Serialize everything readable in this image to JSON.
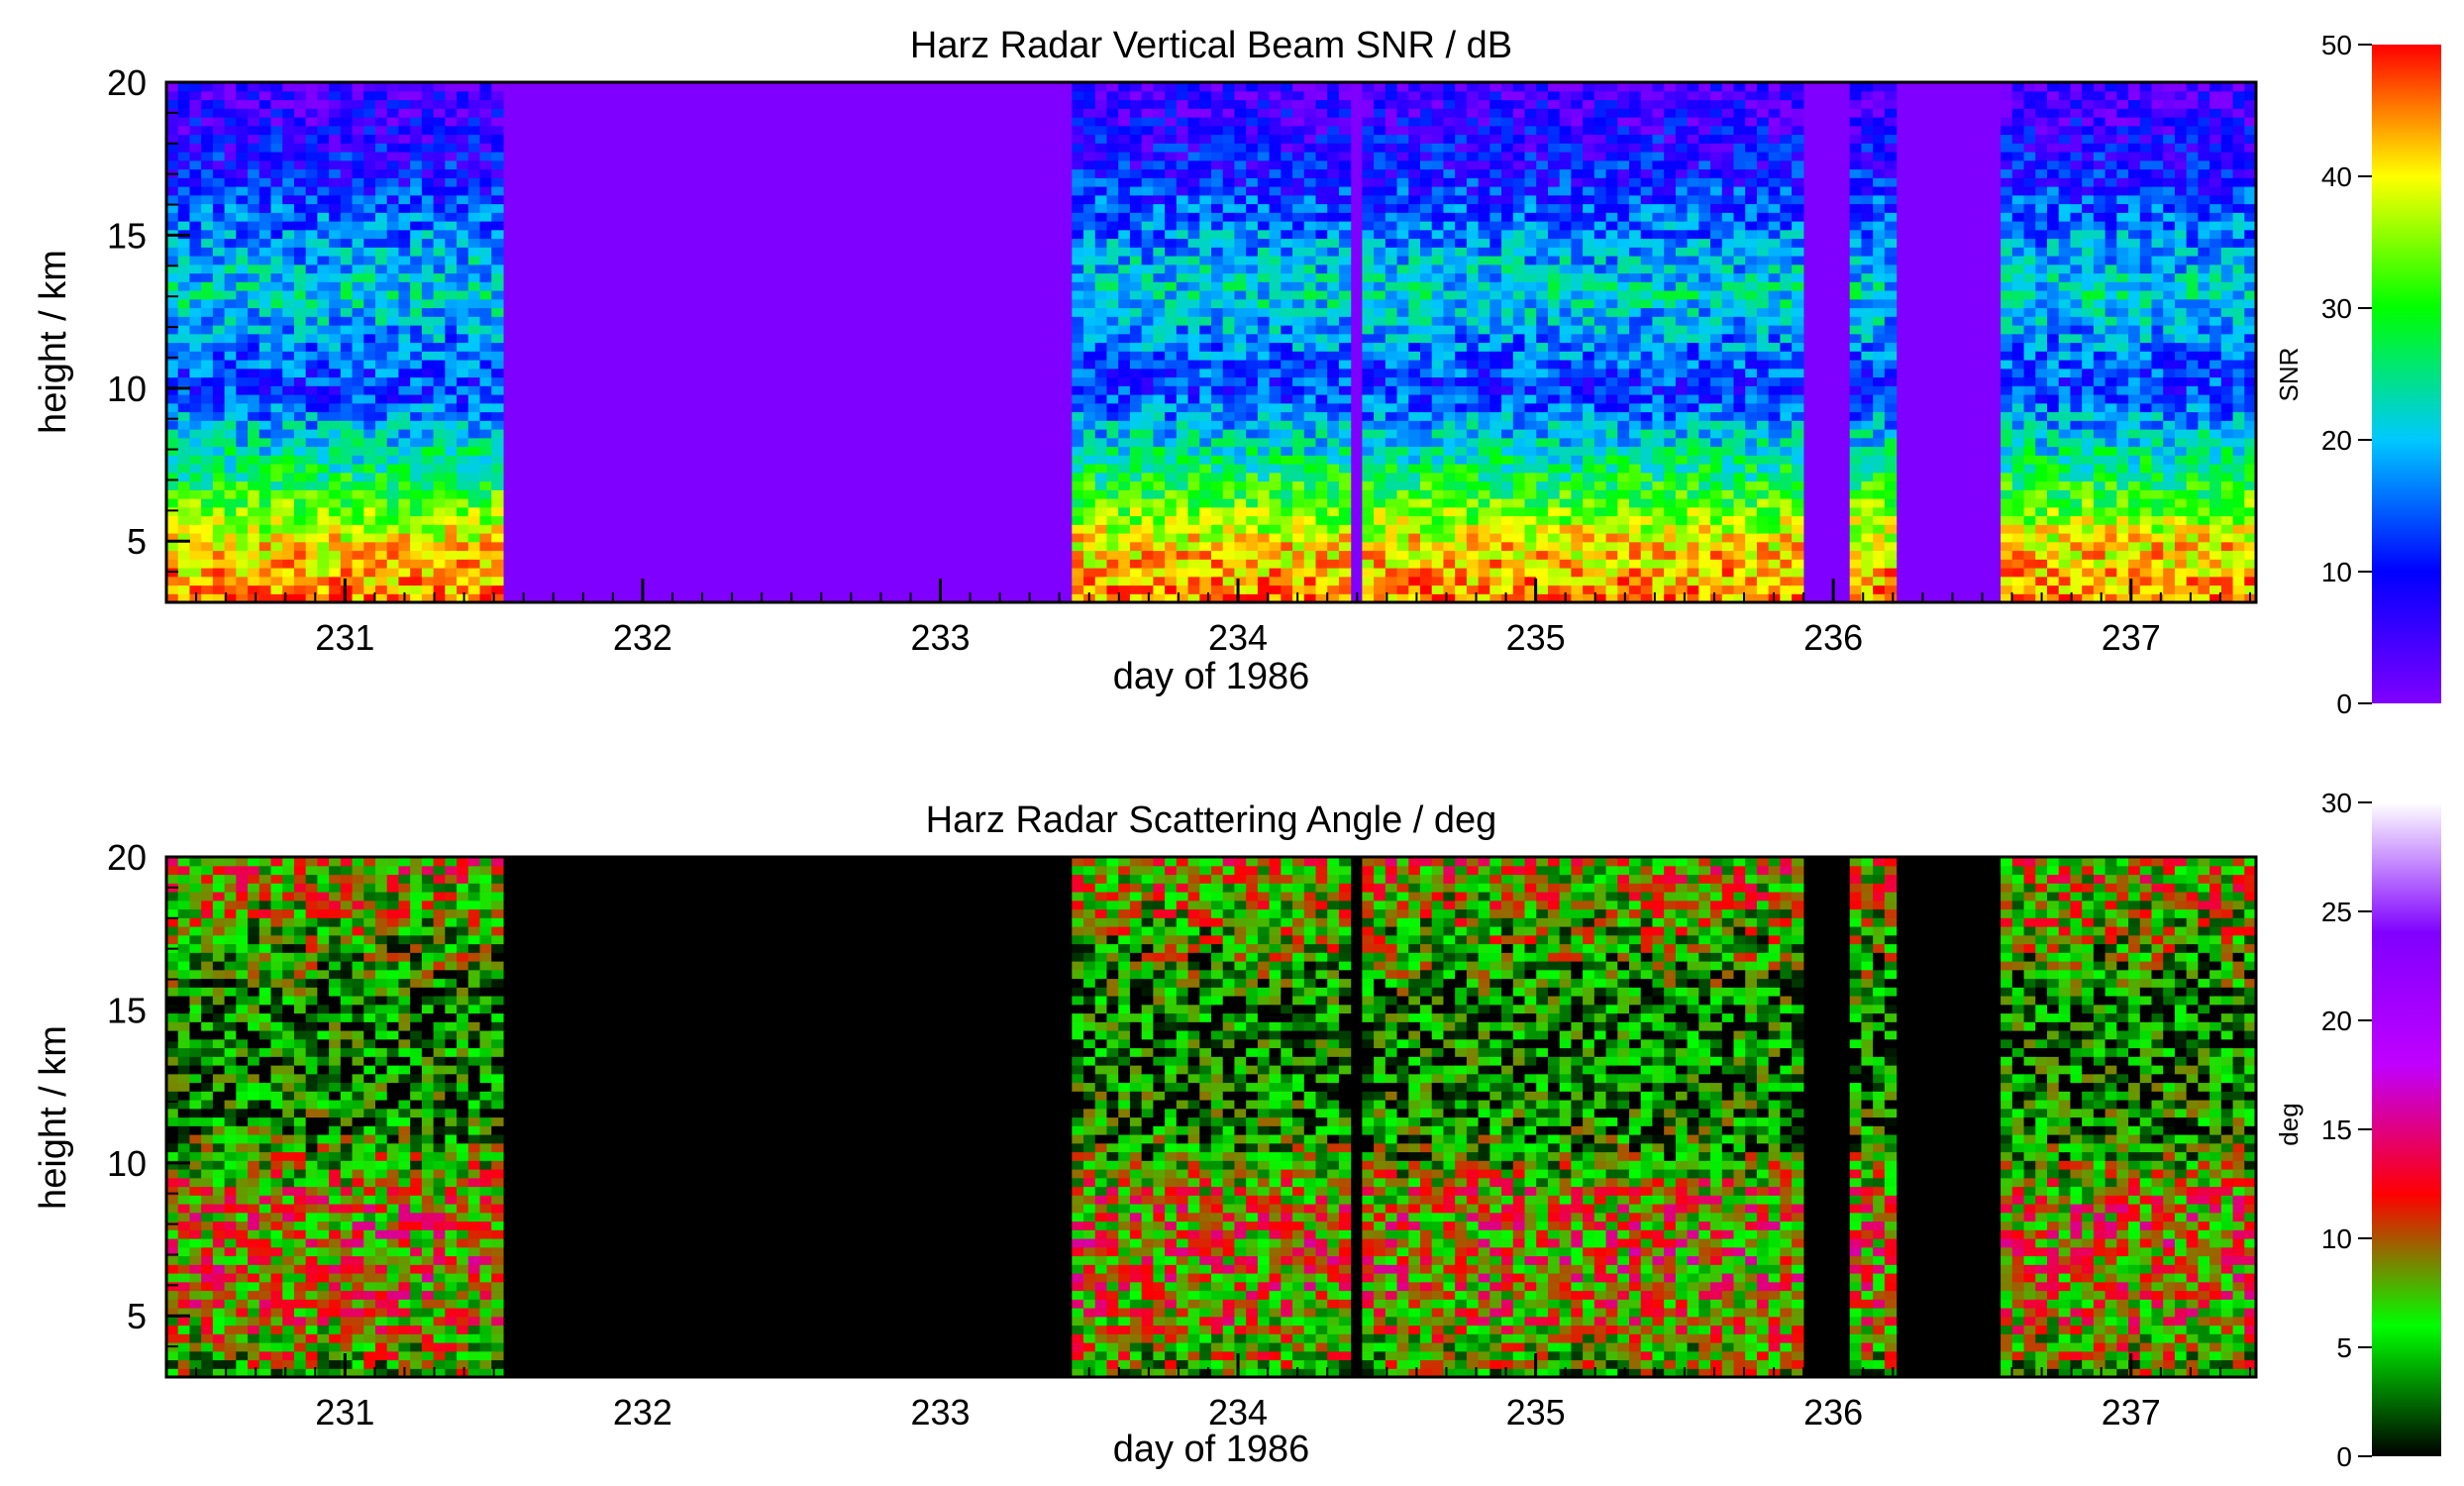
{
  "chart_data": [
    {
      "type": "heatmap",
      "title": "Harz Radar Vertical Beam SNR / dB",
      "xlabel": "day of 1986",
      "ylabel": "height / km",
      "x_ticks": [
        231,
        232,
        233,
        234,
        235,
        236,
        237
      ],
      "y_ticks": [
        5,
        10,
        15,
        20
      ],
      "xlim": [
        230.4,
        237.42
      ],
      "ylim": [
        3,
        20
      ],
      "colorbar": {
        "label": "SNR",
        "range": [
          0,
          50
        ],
        "ticks": [
          0,
          10,
          20,
          30,
          40,
          50
        ],
        "colormap": "rainbow (violet-blue-cyan-green-yellow-red)",
        "colors": [
          "#7f00ff",
          "#0000ff",
          "#00c8ff",
          "#00ff00",
          "#ffff00",
          "#ff0000"
        ]
      },
      "no_data_color": "#7f00ff",
      "data_gaps_day": [
        [
          231.52,
          233.45
        ],
        [
          234.38,
          234.43
        ],
        [
          235.9,
          236.05
        ],
        [
          236.2,
          236.55
        ]
      ],
      "height_profile": {
        "heights_km": [
          3,
          5,
          7,
          9,
          10,
          11,
          13,
          15,
          17,
          20
        ],
        "snr_db": [
          45,
          40,
          28,
          18,
          12,
          15,
          22,
          17,
          10,
          4
        ]
      }
    },
    {
      "type": "heatmap",
      "title": "Harz Radar Scattering Angle / deg",
      "xlabel": "day of 1986",
      "ylabel": "height / km",
      "x_ticks": [
        231,
        232,
        233,
        234,
        235,
        236,
        237
      ],
      "y_ticks": [
        5,
        10,
        15,
        20
      ],
      "xlim": [
        230.4,
        237.42
      ],
      "ylim": [
        3,
        20
      ],
      "colorbar": {
        "label": "deg",
        "range": [
          0,
          30
        ],
        "ticks": [
          0,
          5,
          10,
          15,
          20,
          25,
          30
        ],
        "colormap": "black-green-red-magenta-violet-white",
        "colors": [
          "#000000",
          "#00ff00",
          "#ff0000",
          "#c000ff",
          "#8000ff",
          "#ffffff"
        ]
      },
      "no_data_color": "#000000",
      "data_gaps_day": [
        [
          231.52,
          233.45
        ],
        [
          234.38,
          234.43
        ],
        [
          235.9,
          236.05
        ],
        [
          236.2,
          236.55
        ]
      ],
      "height_profile": {
        "heights_km": [
          3,
          5,
          7,
          9,
          11,
          13,
          15,
          17,
          20
        ],
        "angle_deg": [
          6,
          9,
          10,
          9,
          4,
          3,
          3,
          6,
          9
        ]
      }
    }
  ]
}
